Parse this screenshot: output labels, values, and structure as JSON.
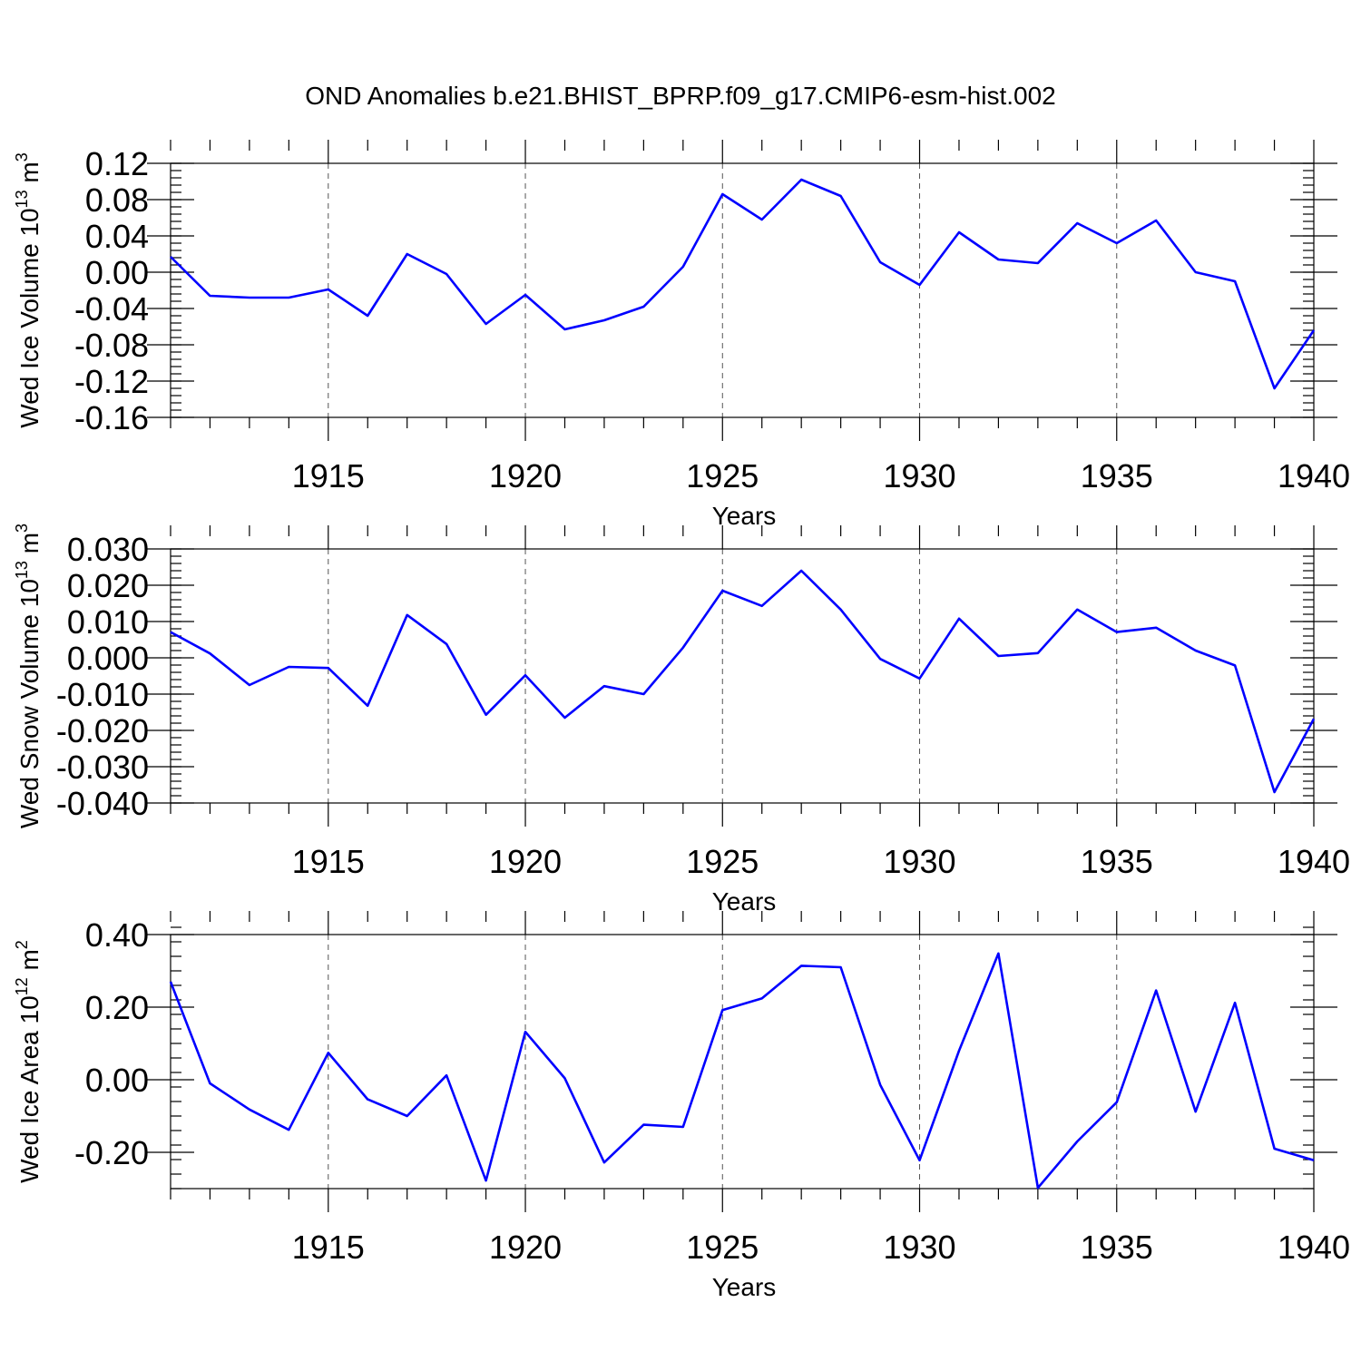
{
  "title": "OND Anomalies b.e21.BHIST_BPRP.f09_g17.CMIP6-esm-hist.002",
  "colors": {
    "line": "#0000ff",
    "axis": "#000000",
    "grid": "#555555"
  },
  "chart_data": [
    {
      "type": "line",
      "title": "OND Anomalies b.e21.BHIST_BPRP.f09_g17.CMIP6-esm-hist.002",
      "ylabel": "Wed Ice Volume 10",
      "ylabel_exp": "13",
      "ylabel_unit": " m",
      "ylabel_unit_exp": "3",
      "xlabel": "Years",
      "xlim": [
        1911,
        1940
      ],
      "ylim": [
        -0.16,
        0.12
      ],
      "yticks": [
        -0.16,
        -0.12,
        -0.08,
        -0.04,
        0.0,
        0.04,
        0.08,
        0.12
      ],
      "ytick_labels": [
        "-0.16",
        "-0.12",
        "-0.08",
        "-0.04",
        "0.00",
        "0.04",
        "0.08",
        "0.12"
      ],
      "yminor_step": 0.008,
      "xticks": [
        1915,
        1920,
        1925,
        1930,
        1935,
        1940
      ],
      "xtick_labels": [
        "1915",
        "1920",
        "1925",
        "1930",
        "1935",
        "1940"
      ],
      "grid_x": [
        1915,
        1920,
        1925,
        1930,
        1935
      ],
      "x": [
        1911,
        1912,
        1913,
        1914,
        1915,
        1916,
        1917,
        1918,
        1919,
        1920,
        1921,
        1922,
        1923,
        1924,
        1925,
        1926,
        1927,
        1928,
        1929,
        1930,
        1931,
        1932,
        1933,
        1934,
        1935,
        1936,
        1937,
        1938,
        1939,
        1940
      ],
      "series": [
        {
          "name": "Wed Ice Volume",
          "values": [
            0.017,
            -0.026,
            -0.028,
            -0.028,
            -0.019,
            -0.048,
            0.02,
            -0.002,
            -0.057,
            -0.025,
            -0.063,
            -0.053,
            -0.038,
            0.006,
            0.086,
            0.058,
            0.102,
            0.084,
            0.011,
            -0.014,
            0.044,
            0.014,
            0.01,
            0.054,
            0.032,
            0.057,
            0.0,
            -0.01,
            -0.128,
            -0.064
          ]
        }
      ]
    },
    {
      "type": "line",
      "ylabel": "Wed Snow Volume 10",
      "ylabel_exp": "13",
      "ylabel_unit": " m",
      "ylabel_unit_exp": "3",
      "xlabel": "Years",
      "xlim": [
        1911,
        1940
      ],
      "ylim": [
        -0.04,
        0.03
      ],
      "yticks": [
        -0.04,
        -0.03,
        -0.02,
        -0.01,
        0.0,
        0.01,
        0.02,
        0.03
      ],
      "ytick_labels": [
        "-0.040",
        "-0.030",
        "-0.020",
        "-0.010",
        "0.000",
        "0.010",
        "0.020",
        "0.030"
      ],
      "yminor_step": 0.002,
      "xticks": [
        1915,
        1920,
        1925,
        1930,
        1935,
        1940
      ],
      "xtick_labels": [
        "1915",
        "1920",
        "1925",
        "1930",
        "1935",
        "1940"
      ],
      "grid_x": [
        1915,
        1920,
        1925,
        1930,
        1935
      ],
      "x": [
        1911,
        1912,
        1913,
        1914,
        1915,
        1916,
        1917,
        1918,
        1919,
        1920,
        1921,
        1922,
        1923,
        1924,
        1925,
        1926,
        1927,
        1928,
        1929,
        1930,
        1931,
        1932,
        1933,
        1934,
        1935,
        1936,
        1937,
        1938,
        1939,
        1940
      ],
      "series": [
        {
          "name": "Wed Snow Volume",
          "values": [
            0.0071,
            0.0012,
            -0.0075,
            -0.0025,
            -0.0028,
            -0.0132,
            0.0118,
            0.0038,
            -0.0157,
            -0.0048,
            -0.0165,
            -0.0078,
            -0.01,
            0.0028,
            0.0185,
            0.0143,
            0.024,
            0.0133,
            -0.0003,
            -0.0057,
            0.0108,
            0.0005,
            0.0013,
            0.0133,
            0.0071,
            0.0083,
            0.002,
            -0.0021,
            -0.037,
            -0.0168
          ]
        }
      ]
    },
    {
      "type": "line",
      "ylabel": "Wed Ice Area 10",
      "ylabel_exp": "12",
      "ylabel_unit": " m",
      "ylabel_unit_exp": "2",
      "xlabel": "Years",
      "xlim": [
        1911,
        1940
      ],
      "ylim": [
        -0.3,
        0.4
      ],
      "yticks": [
        -0.2,
        0.0,
        0.2,
        0.4
      ],
      "ytick_labels": [
        "-0.20",
        "0.00",
        "0.20",
        "0.40"
      ],
      "yminor_step": 0.04,
      "xticks": [
        1915,
        1920,
        1925,
        1930,
        1935,
        1940
      ],
      "xtick_labels": [
        "1915",
        "1920",
        "1925",
        "1930",
        "1935",
        "1940"
      ],
      "grid_x": [
        1915,
        1920,
        1925,
        1930,
        1935
      ],
      "x": [
        1911,
        1912,
        1913,
        1914,
        1915,
        1916,
        1917,
        1918,
        1919,
        1920,
        1921,
        1922,
        1923,
        1924,
        1925,
        1926,
        1927,
        1928,
        1929,
        1930,
        1931,
        1932,
        1933,
        1934,
        1935,
        1936,
        1937,
        1938,
        1939,
        1940
      ],
      "series": [
        {
          "name": "Wed Ice Area",
          "values": [
            0.27,
            -0.01,
            -0.082,
            -0.138,
            0.074,
            -0.054,
            -0.1,
            0.012,
            -0.278,
            0.132,
            0.004,
            -0.228,
            -0.124,
            -0.13,
            0.192,
            0.224,
            0.314,
            0.31,
            -0.014,
            -0.222,
            0.08,
            0.348,
            -0.298,
            -0.17,
            -0.062,
            0.246,
            -0.088,
            0.212,
            -0.19,
            -0.222
          ]
        }
      ]
    }
  ]
}
